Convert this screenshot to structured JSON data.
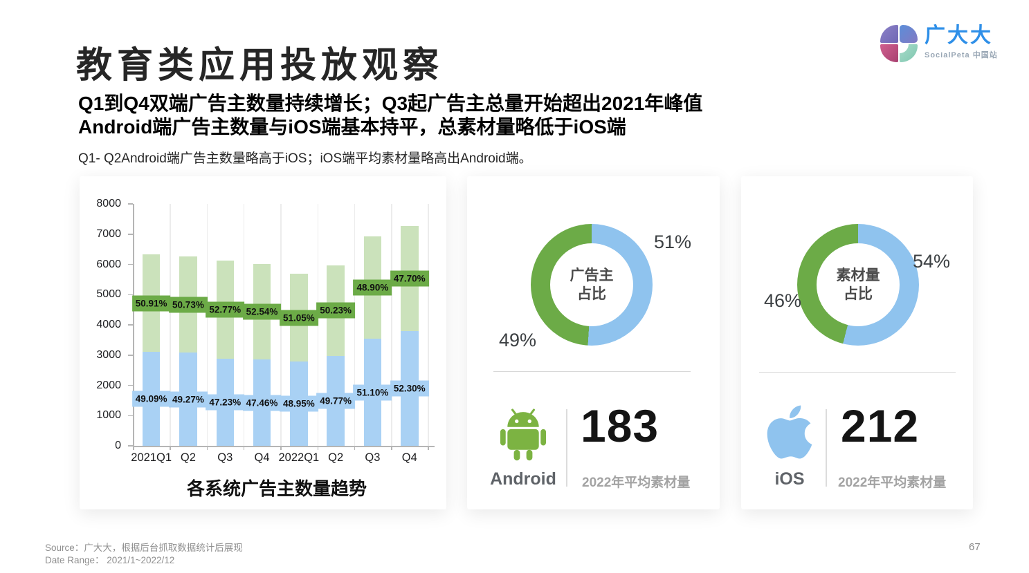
{
  "header": {
    "title": "教育类应用投放观察",
    "subtitle_line1": "Q1到Q4双端广告主数量持续增长；Q3起广告主总量开始超出2021年峰值",
    "subtitle_line2": "Android端广告主数量与iOS端基本持平，总素材量略低于iOS端",
    "description": "Q1- Q2Android端广告主数量略高于iOS；iOS端平均素材量略高出Android端。"
  },
  "logo": {
    "brand": "广大大",
    "sub": "SocialPeta 中国站",
    "brand_color": "#2E8FE8"
  },
  "chart_data": [
    {
      "type": "bar",
      "subtype": "stacked",
      "title": "各系统广告主数量趋势",
      "categories": [
        "2021Q1",
        "Q2",
        "Q3",
        "Q4",
        "2022Q1",
        "Q2",
        "Q3",
        "Q4"
      ],
      "ylim": [
        0,
        8000
      ],
      "y_ticks": [
        0,
        1000,
        2000,
        3000,
        4000,
        5000,
        6000,
        7000,
        8000
      ],
      "grid": "vertical-only",
      "legend": "none",
      "series": [
        {
          "name": "blue-bottom",
          "color": "#A9D1F4",
          "label_bg": "#A9D1F4",
          "values": [
            3107,
            3084,
            2890,
            2852,
            2785,
            2971,
            3536,
            3802
          ],
          "labels": [
            "49.09%",
            "49.27%",
            "47.23%",
            "47.46%",
            "48.95%",
            "49.77%",
            "51.10%",
            "52.30%"
          ]
        },
        {
          "name": "green-top",
          "color": "#CBE2BB",
          "label_bg": "#6CAB47",
          "values": [
            3223,
            3176,
            3230,
            3158,
            2905,
            2999,
            3384,
            3468
          ],
          "labels": [
            "50.91%",
            "50.73%",
            "52.77%",
            "52.54%",
            "51.05%",
            "50.23%",
            "48.90%",
            "47.70%"
          ]
        }
      ]
    },
    {
      "type": "donut",
      "center_label_line1": "广告主",
      "center_label_line2": "占比",
      "slices": [
        {
          "label": "51%",
          "value": 51,
          "color": "#8FC3EE"
        },
        {
          "label": "49%",
          "value": 49,
          "color": "#6CAB47"
        }
      ]
    },
    {
      "type": "donut",
      "center_label_line1": "素材量",
      "center_label_line2": "占比",
      "slices": [
        {
          "label": "54%",
          "value": 54,
          "color": "#8FC3EE"
        },
        {
          "label": "46%",
          "value": 46,
          "color": "#6CAB47"
        }
      ]
    }
  ],
  "platform_cards": {
    "android": {
      "platform": "Android",
      "icon_color": "#7CB342",
      "metric_value": "183",
      "metric_caption": "2022年平均素材量"
    },
    "ios": {
      "platform": "iOS",
      "icon_color": "#8FC3EE",
      "metric_value": "212",
      "metric_caption": "2022年平均素材量"
    }
  },
  "footer": {
    "source": "Source：广大大，根据后台抓取数据统计后展现",
    "date_range": "Date Range： 2021/1~2022/12",
    "page_number": "67"
  }
}
